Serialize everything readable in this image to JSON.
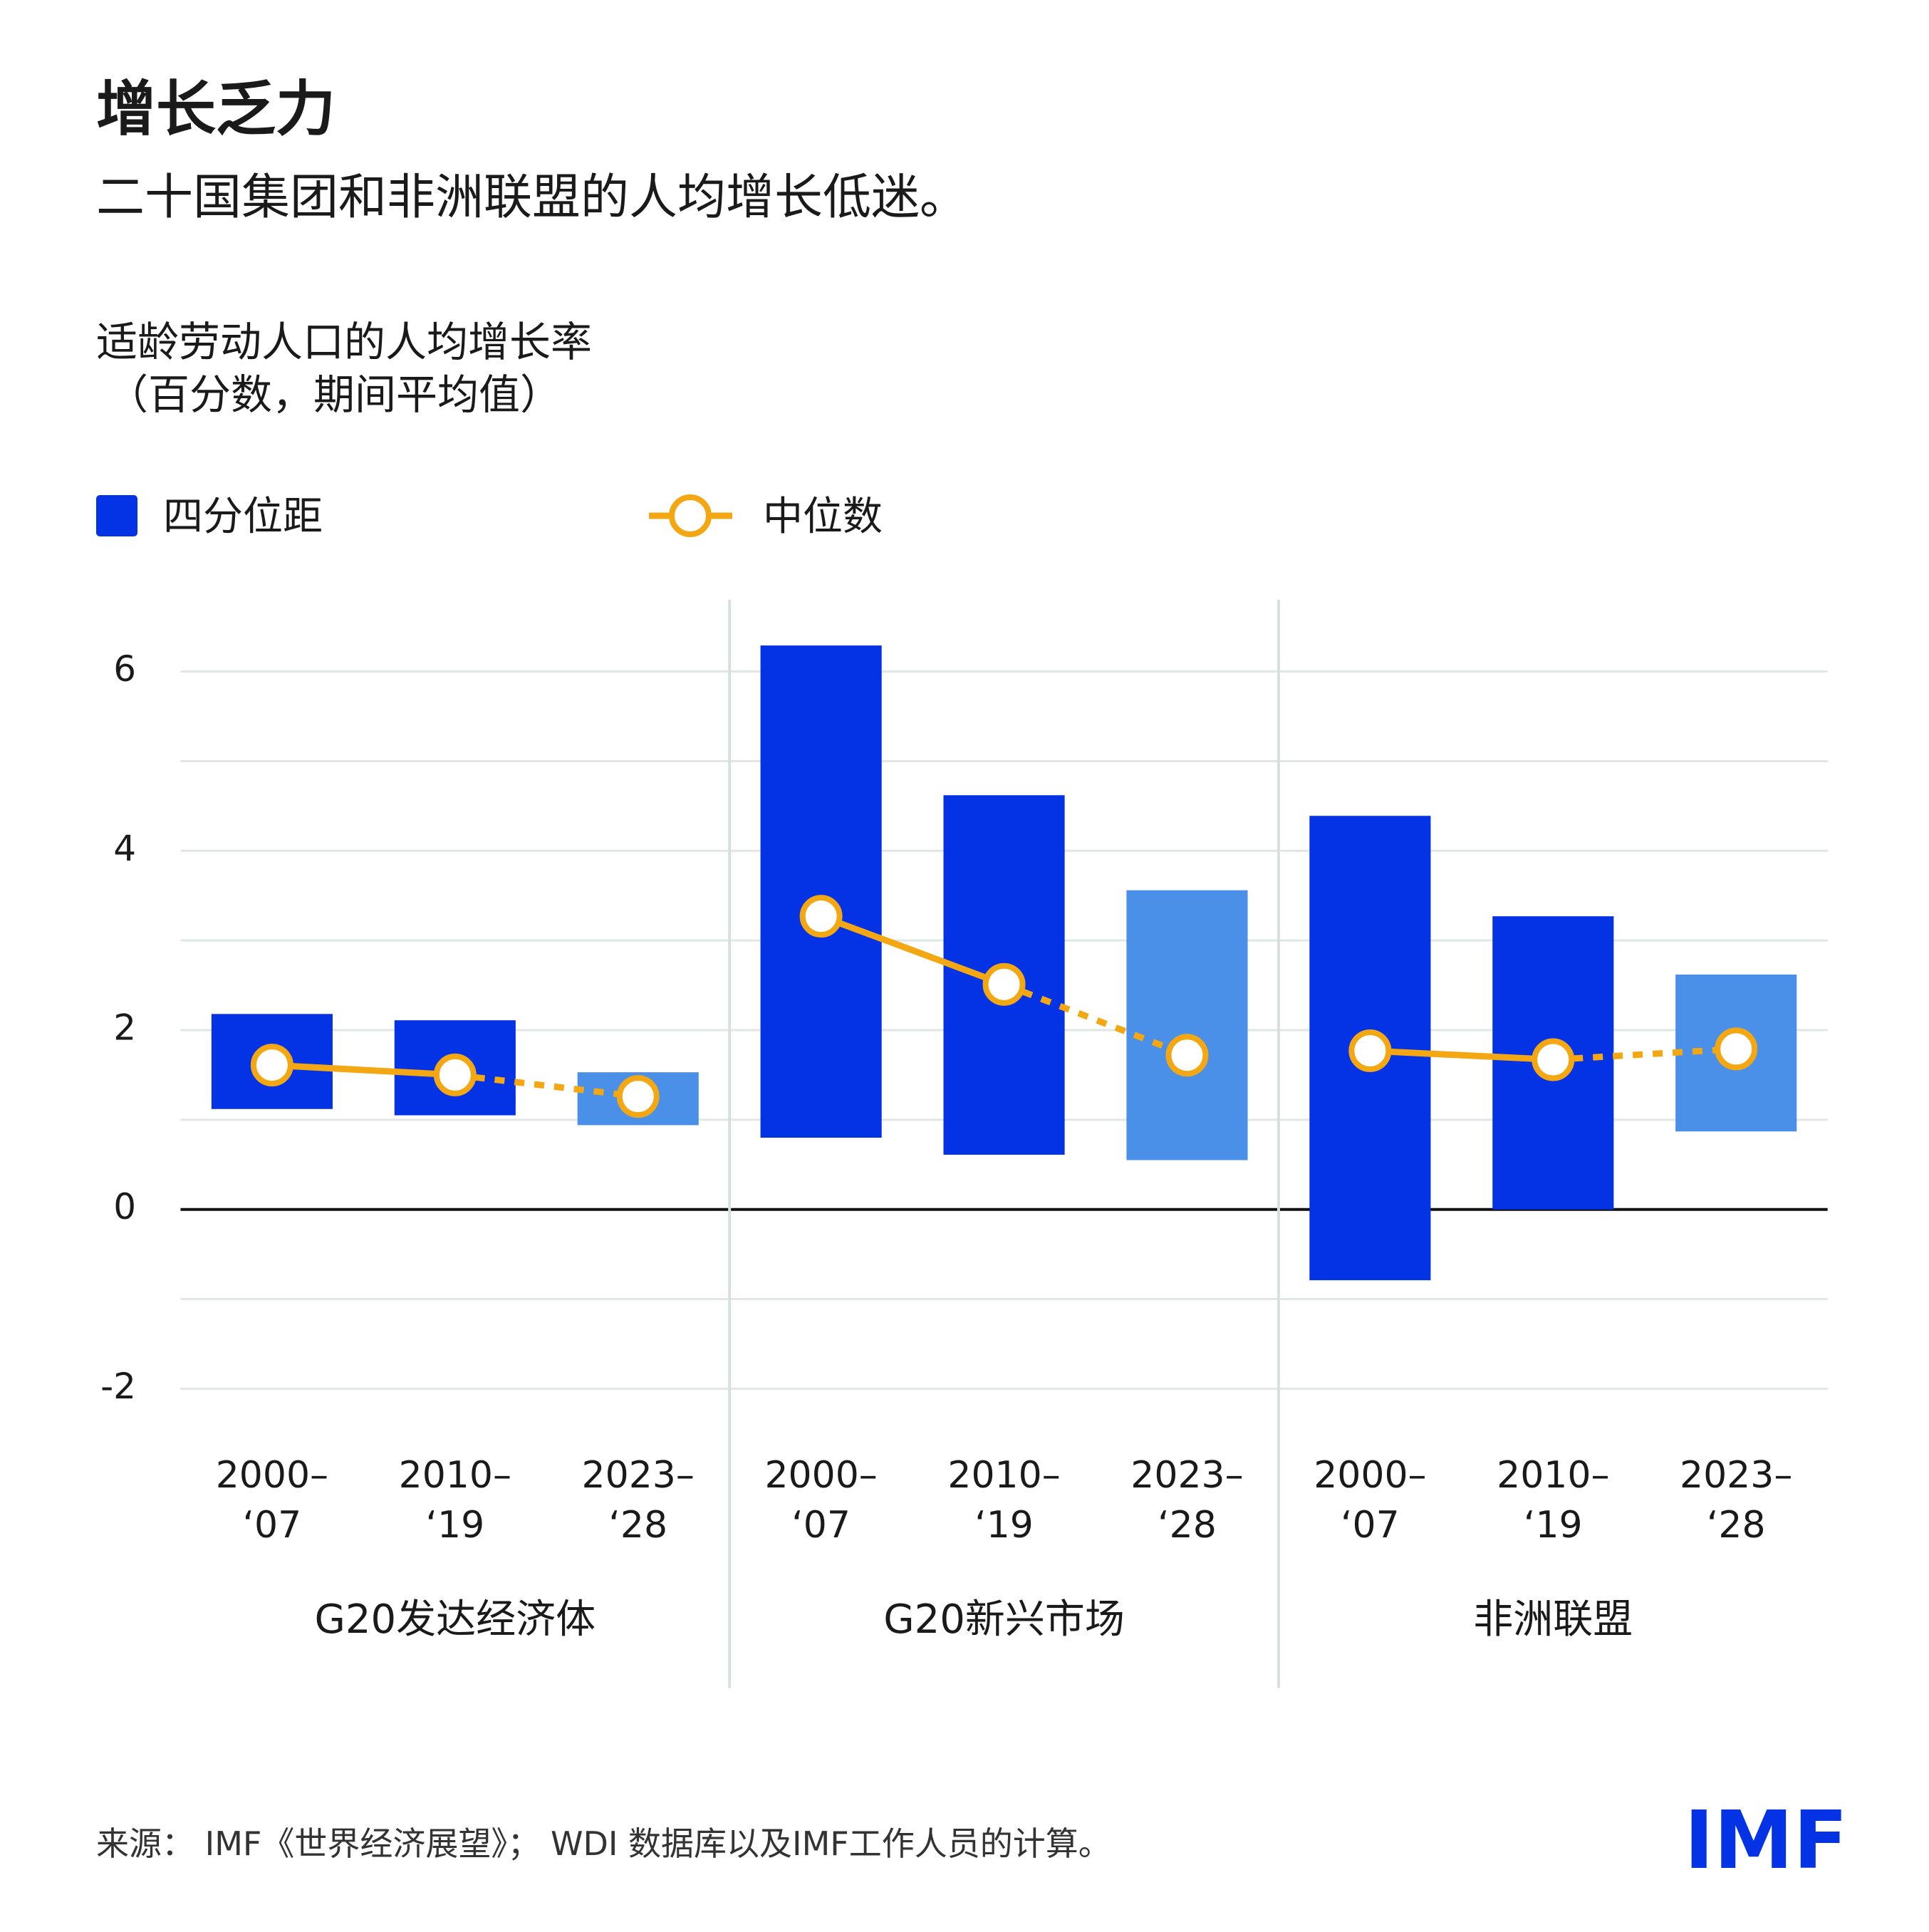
{
  "chart_data": {
    "type": "range-bar",
    "title": "增长乏力",
    "subtitle": "二十国集团和非洲联盟的人均增长低迷。",
    "axis_title": "适龄劳动人口的人均增长率",
    "axis_subtitle": "（百分数，期间平均值）",
    "groups": [
      "G20发达经济体",
      "G20新兴市场",
      "非洲联盟"
    ],
    "categories": [
      "2000–\n‘07",
      "2010–\n‘19",
      "2023–\n‘28",
      "2000–\n‘07",
      "2010–\n‘19",
      "2023–\n‘28",
      "2000–\n‘07",
      "2010–\n‘19",
      "2023–\n‘28"
    ],
    "projected": [
      false,
      false,
      true,
      false,
      false,
      true,
      false,
      false,
      true
    ],
    "series": [
      {
        "name": "四分位距",
        "color": "#0433e6",
        "projection_color": "#4a8fe8",
        "low": [
          1.12,
          1.05,
          0.94,
          0.8,
          0.61,
          0.55,
          -0.79,
          0,
          0.87
        ],
        "high": [
          2.18,
          2.11,
          1.53,
          6.29,
          4.62,
          3.56,
          4.39,
          3.27,
          2.62
        ]
      },
      {
        "name": "中位数",
        "color": "#f3a712",
        "values": [
          1.61,
          1.5,
          1.26,
          3.27,
          2.51,
          1.72,
          1.77,
          1.67,
          1.79
        ]
      }
    ],
    "ylim": [
      -2,
      6.8
    ],
    "yticks": [
      -2,
      0,
      2,
      4,
      6
    ],
    "minor_yticks": [
      -1,
      1,
      3,
      5
    ],
    "grid": true,
    "source": "来源： IMF《世界经济展望》； WDI 数据库以及IMF工作人员的计算。",
    "logo": "IMF"
  }
}
